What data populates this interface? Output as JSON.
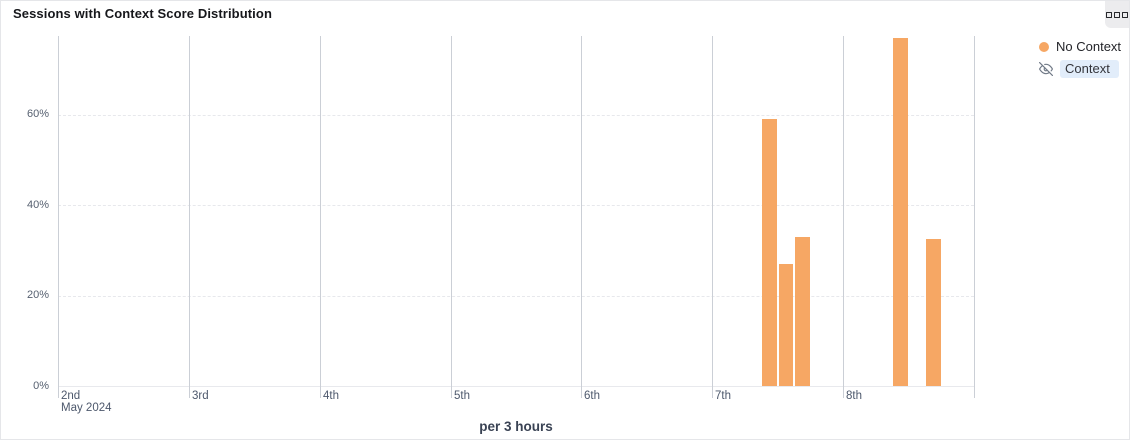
{
  "card": {
    "title": "Sessions with Context Score Distribution",
    "footer_label": "per 3 hours",
    "menu_button_icon": "three-squares-icon"
  },
  "legend": {
    "items": [
      {
        "label": "No Context",
        "visible": true,
        "marker": "dot",
        "color": "#f6a764"
      },
      {
        "label": "Context",
        "visible": false,
        "marker": "eye-slash",
        "highlight_color": "#e2edfa"
      }
    ]
  },
  "chart_data": {
    "type": "bar",
    "title": "Sessions with Context Score Distribution",
    "granularity_label": "per 3 hours",
    "x_axis": {
      "unit": "date",
      "month_label": "May 2024",
      "day_tick_labels": [
        "2nd",
        "3rd",
        "4th",
        "5th",
        "6th",
        "7th",
        "8th"
      ],
      "days_shown": 7,
      "slots_per_day": 8,
      "gridlines": "vertical-solid"
    },
    "y_axis": {
      "unit": "%",
      "tick_labels": [
        "0%",
        "20%",
        "40%",
        "60%"
      ],
      "tick_values": [
        0,
        20,
        40,
        60
      ],
      "range": [
        0,
        77.4
      ],
      "gridlines": "horizontal-dashed"
    },
    "series": [
      {
        "name": "No Context",
        "color": "#f6a764",
        "hidden": false,
        "points": [
          {
            "day_label": "7th",
            "slot_of_day": 3,
            "value": 59
          },
          {
            "day_label": "7th",
            "slot_of_day": 4,
            "value": 27
          },
          {
            "day_label": "7th",
            "slot_of_day": 5,
            "value": 33
          },
          {
            "day_label": "8th",
            "slot_of_day": 3,
            "value": 77
          },
          {
            "day_label": "8th",
            "slot_of_day": 5,
            "value": 32.5
          }
        ]
      },
      {
        "name": "Context",
        "hidden": true,
        "points": []
      }
    ]
  }
}
